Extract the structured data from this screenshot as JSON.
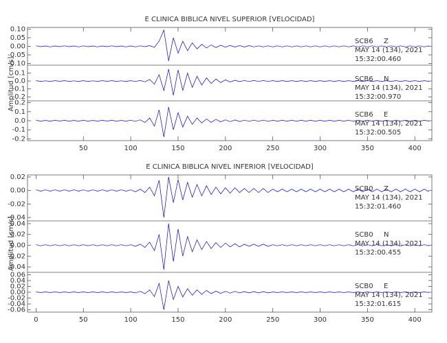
{
  "chart_data": [
    {
      "type": "line",
      "title": "E CLINICA BIBLICA NIVEL SUPERIOR [VELOCIDAD]",
      "y_label": "Amplitud [cm/s]",
      "xlim": [
        -9,
        418
      ],
      "xticks": [
        50,
        100,
        150,
        200,
        250,
        300,
        350,
        400
      ],
      "x": [
        0,
        5,
        10,
        15,
        20,
        25,
        30,
        35,
        40,
        45,
        50,
        55,
        60,
        65,
        70,
        75,
        80,
        85,
        90,
        95,
        100,
        105,
        110,
        115,
        120,
        125,
        130,
        135,
        140,
        145,
        150,
        155,
        160,
        165,
        170,
        175,
        180,
        185,
        190,
        195,
        200,
        205,
        210,
        215,
        220,
        225,
        230,
        235,
        240,
        245,
        250,
        255,
        260,
        265,
        270,
        275,
        280,
        285,
        290,
        295,
        300,
        305,
        310,
        315,
        320,
        325,
        330,
        335,
        340,
        345,
        350,
        355,
        360,
        365,
        370,
        375,
        380,
        385,
        390,
        395,
        400,
        405,
        410,
        415
      ],
      "series": [
        {
          "station": "SCB6",
          "component": "Z",
          "date": "MAY 14 (134), 2021",
          "time": "15:32:00.460",
          "color": "#0000ff",
          "ylim": [
            -0.11,
            0.11
          ],
          "yticks": [
            {
              "value": 0.1,
              "label": "0.10"
            },
            0.05,
            {
              "value": 0,
              "label": "0.00"
            },
            -0.05,
            {
              "value": -0.1,
              "label": "-0.10"
            }
          ],
          "values": [
            0.003,
            -0.002,
            0.002,
            -0.003,
            0.002,
            -0.002,
            0.003,
            -0.002,
            0.002,
            -0.003,
            0.003,
            -0.002,
            0.002,
            -0.003,
            0.002,
            -0.002,
            0.003,
            -0.002,
            0.002,
            -0.003,
            0.002,
            -0.003,
            0.003,
            -0.002,
            0.004,
            -0.006,
            0.03,
            0.095,
            -0.085,
            0.05,
            -0.04,
            0.03,
            -0.025,
            0.02,
            -0.015,
            0.012,
            -0.01,
            0.008,
            -0.007,
            0.006,
            -0.005,
            0.005,
            -0.004,
            0.004,
            -0.004,
            0.004,
            -0.003,
            0.003,
            -0.003,
            0.003,
            -0.003,
            0.003,
            -0.003,
            0.003,
            -0.003,
            0.003,
            -0.003,
            0.003,
            -0.003,
            0.003,
            -0.003,
            0.003,
            -0.003,
            0.003,
            -0.003,
            0.003,
            -0.003,
            0.003,
            -0.003,
            0.003,
            -0.003,
            0.003,
            -0.003,
            0.003,
            -0.003,
            0.003,
            -0.003,
            0.003,
            -0.003,
            0.003,
            -0.003,
            0.003,
            -0.003,
            0.003
          ]
        },
        {
          "station": "SCB6",
          "component": "N",
          "date": "MAY 14 (134), 2021",
          "time": "15:32:00.970",
          "color": "#0000ff",
          "ylim": [
            -0.25,
            0.2
          ],
          "yticks": [
            0.1,
            {
              "value": 0,
              "label": "0.0"
            },
            -0.1,
            -0.2
          ],
          "values": [
            0.004,
            -0.004,
            0.003,
            -0.004,
            0.004,
            -0.003,
            0.004,
            -0.004,
            0.003,
            -0.004,
            0.004,
            -0.004,
            0.003,
            -0.004,
            0.004,
            -0.003,
            0.004,
            -0.004,
            0.003,
            -0.004,
            0.004,
            -0.005,
            0.006,
            -0.01,
            0.02,
            -0.04,
            0.08,
            -0.12,
            0.15,
            -0.18,
            0.14,
            -0.12,
            0.1,
            -0.08,
            0.06,
            -0.05,
            0.04,
            -0.03,
            0.025,
            -0.02,
            0.015,
            -0.012,
            0.01,
            -0.008,
            0.007,
            -0.006,
            0.006,
            -0.005,
            0.005,
            -0.005,
            0.004,
            -0.004,
            0.004,
            -0.004,
            0.004,
            -0.004,
            0.004,
            -0.004,
            0.004,
            -0.004,
            0.004,
            -0.004,
            0.004,
            -0.004,
            0.004,
            -0.004,
            0.004,
            -0.004,
            0.004,
            -0.004,
            0.004,
            -0.004,
            0.004,
            -0.004,
            0.004,
            -0.004,
            0.004,
            -0.004,
            0.004,
            -0.004,
            0.004,
            -0.004,
            0.004,
            -0.004
          ]
        },
        {
          "station": "SCB6",
          "component": "E",
          "date": "MAY 14 (134), 2021",
          "time": "15:32:00.505",
          "color": "#0000ff",
          "ylim": [
            -0.22,
            0.22
          ],
          "yticks": [
            0.2,
            0.1,
            {
              "value": 0,
              "label": "0.0"
            },
            -0.1,
            -0.2
          ],
          "values": [
            0.004,
            -0.004,
            0.003,
            -0.004,
            0.004,
            -0.003,
            0.004,
            -0.004,
            0.003,
            -0.004,
            0.004,
            -0.004,
            0.003,
            -0.004,
            0.004,
            -0.003,
            0.004,
            -0.004,
            0.003,
            -0.004,
            0.005,
            -0.006,
            0.01,
            -0.02,
            0.03,
            -0.06,
            0.12,
            -0.18,
            0.15,
            -0.1,
            0.09,
            -0.07,
            0.05,
            -0.04,
            0.03,
            -0.025,
            0.02,
            -0.018,
            0.015,
            -0.012,
            0.01,
            -0.01,
            0.008,
            -0.008,
            0.006,
            -0.006,
            0.006,
            -0.005,
            0.005,
            -0.005,
            0.004,
            -0.004,
            0.004,
            -0.004,
            0.004,
            -0.004,
            0.004,
            -0.004,
            0.004,
            -0.004,
            0.004,
            -0.004,
            0.004,
            -0.004,
            0.004,
            -0.004,
            0.004,
            -0.004,
            0.004,
            -0.004,
            0.004,
            -0.004,
            0.004,
            -0.004,
            0.004,
            -0.004,
            0.004,
            -0.004,
            0.004,
            -0.004,
            0.004,
            -0.004,
            0.004,
            -0.004
          ]
        }
      ]
    },
    {
      "type": "line",
      "title": "E CLINICA BIBLICA NIVEL INFERIOR [VELOCIDAD]",
      "y_label": "Amplitud [cm/s]",
      "xlim": [
        -9,
        418
      ],
      "xticks": [
        0,
        50,
        100,
        150,
        200,
        250,
        300,
        350,
        400
      ],
      "x": [
        0,
        5,
        10,
        15,
        20,
        25,
        30,
        35,
        40,
        45,
        50,
        55,
        60,
        65,
        70,
        75,
        80,
        85,
        90,
        95,
        100,
        105,
        110,
        115,
        120,
        125,
        130,
        135,
        140,
        145,
        150,
        155,
        160,
        165,
        170,
        175,
        180,
        185,
        190,
        195,
        200,
        205,
        210,
        215,
        220,
        225,
        230,
        235,
        240,
        245,
        250,
        255,
        260,
        265,
        270,
        275,
        280,
        285,
        290,
        295,
        300,
        305,
        310,
        315,
        320,
        325,
        330,
        335,
        340,
        345,
        350,
        355,
        360,
        365,
        370,
        375,
        380,
        385,
        390,
        395,
        400,
        405,
        410,
        415
      ],
      "series": [
        {
          "station": "SCB0",
          "component": "Z",
          "date": "MAY 14 (134), 2021",
          "time": "15:32:01.460",
          "color": "#0000ff",
          "ylim": [
            -0.045,
            0.023
          ],
          "yticks": [
            0.02,
            {
              "value": 0,
              "label": "0.00"
            },
            -0.02,
            -0.04
          ],
          "values": [
            0.001,
            -0.001,
            0.001,
            -0.001,
            0.001,
            -0.001,
            0.001,
            -0.001,
            0.001,
            -0.001,
            0.001,
            -0.001,
            0.001,
            -0.001,
            0.001,
            -0.001,
            0.001,
            -0.001,
            0.001,
            -0.001,
            0.001,
            -0.002,
            0.002,
            -0.003,
            0.005,
            -0.008,
            0.015,
            -0.04,
            0.02,
            -0.018,
            0.016,
            -0.014,
            0.012,
            -0.01,
            0.009,
            -0.008,
            0.007,
            -0.006,
            0.005,
            -0.005,
            0.004,
            -0.004,
            0.004,
            -0.003,
            0.003,
            -0.003,
            0.003,
            -0.003,
            0.003,
            -0.003,
            0.002,
            -0.002,
            0.002,
            -0.002,
            0.002,
            -0.002,
            0.002,
            -0.002,
            0.002,
            -0.002,
            0.002,
            -0.002,
            0.002,
            -0.002,
            0.002,
            -0.002,
            0.002,
            -0.002,
            0.002,
            -0.002,
            0.002,
            -0.002,
            0.002,
            -0.002,
            0.002,
            -0.002,
            0.002,
            -0.002,
            0.002,
            -0.002,
            0.002,
            -0.002,
            0.002,
            -0.002
          ]
        },
        {
          "station": "SCB0",
          "component": "N",
          "date": "MAY 14 (134), 2021",
          "time": "15:32:00.455",
          "color": "#0000ff",
          "ylim": [
            -0.05,
            0.045
          ],
          "yticks": [
            0.04,
            0.02,
            {
              "value": 0,
              "label": "0.00"
            },
            -0.02,
            -0.04
          ],
          "values": [
            0.001,
            -0.001,
            0.001,
            -0.001,
            0.001,
            -0.001,
            0.001,
            -0.001,
            0.001,
            -0.001,
            0.001,
            -0.001,
            0.001,
            -0.001,
            0.001,
            -0.001,
            0.001,
            -0.001,
            0.001,
            -0.001,
            0.001,
            -0.002,
            0.002,
            -0.004,
            0.006,
            -0.01,
            0.02,
            -0.045,
            0.04,
            -0.03,
            0.03,
            -0.02,
            0.016,
            -0.012,
            0.01,
            -0.008,
            0.007,
            -0.006,
            0.005,
            -0.004,
            0.004,
            -0.003,
            0.003,
            -0.003,
            0.002,
            -0.002,
            0.002,
            -0.002,
            0.002,
            -0.002,
            0.001,
            -0.001,
            0.001,
            -0.001,
            0.001,
            -0.001,
            0.001,
            -0.001,
            0.001,
            -0.001,
            0.001,
            -0.001,
            0.001,
            -0.001,
            0.001,
            -0.001,
            0.001,
            -0.001,
            0.001,
            -0.001,
            0.001,
            -0.001,
            0.001,
            -0.001,
            0.001,
            -0.001,
            0.001,
            -0.001,
            0.001,
            -0.001,
            0.001,
            -0.001,
            0.001,
            -0.001
          ]
        },
        {
          "station": "SCB0",
          "component": "E",
          "date": "MAY 14 (134), 2021",
          "time": "15:32:01.615",
          "color": "#0000ff",
          "ylim": [
            -0.068,
            0.068
          ],
          "yticks": [
            0.06,
            0.04,
            0.02,
            {
              "value": 0,
              "label": "0.00"
            },
            -0.02,
            -0.04,
            -0.06
          ],
          "values": [
            0.001,
            -0.001,
            0.001,
            -0.001,
            0.001,
            -0.001,
            0.001,
            -0.001,
            0.001,
            -0.001,
            0.001,
            -0.001,
            0.001,
            -0.001,
            0.001,
            -0.001,
            0.001,
            -0.001,
            0.001,
            -0.001,
            0.001,
            -0.002,
            0.003,
            -0.005,
            0.008,
            -0.015,
            0.03,
            -0.06,
            0.04,
            -0.025,
            0.02,
            -0.016,
            0.012,
            -0.01,
            0.008,
            -0.007,
            0.006,
            -0.005,
            0.004,
            -0.004,
            0.003,
            -0.003,
            0.003,
            -0.002,
            0.002,
            -0.002,
            0.002,
            -0.002,
            0.002,
            -0.002,
            0.001,
            -0.001,
            0.001,
            -0.001,
            0.001,
            -0.001,
            0.001,
            -0.001,
            0.001,
            -0.001,
            0.001,
            -0.001,
            0.001,
            -0.001,
            0.001,
            -0.001,
            0.001,
            -0.001,
            0.001,
            -0.001,
            0.001,
            -0.001,
            0.001,
            -0.001,
            0.001,
            -0.001,
            0.001,
            -0.001,
            0.001,
            -0.001,
            0.001,
            -0.001,
            0.001,
            -0.001
          ]
        }
      ]
    }
  ]
}
